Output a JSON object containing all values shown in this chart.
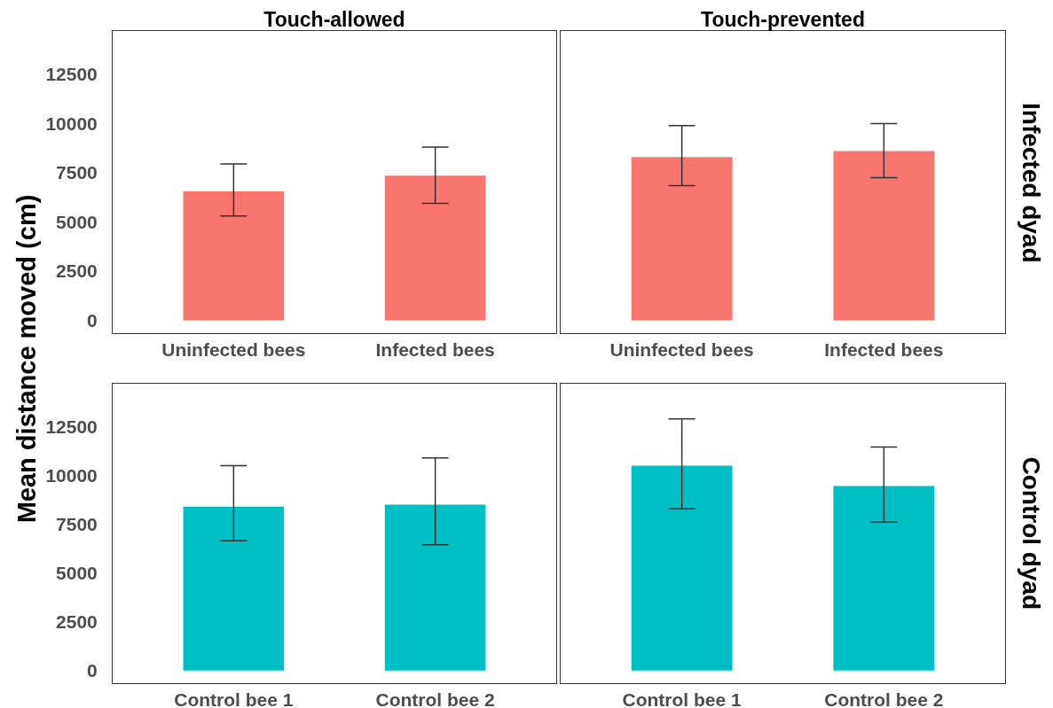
{
  "chart_data": [
    {
      "type": "bar",
      "title": "Touch-allowed",
      "ylabel": "Mean distance moved (cm)",
      "categories": [
        "Uninfected bees",
        "Infected bees"
      ],
      "values": [
        6550,
        7350
      ],
      "errors": [
        [
          5300,
          7950
        ],
        [
          5950,
          8800
        ]
      ],
      "color": "#f8766d",
      "ylim": [
        -650,
        14700
      ],
      "yticks": [
        0,
        2500,
        5000,
        7500,
        10000,
        12500
      ]
    },
    {
      "type": "bar",
      "title": "Touch-prevented",
      "annotations": [
        "Infected dyad"
      ],
      "categories": [
        "Uninfected bees",
        "Infected bees"
      ],
      "values": [
        8300,
        8600
      ],
      "errors": [
        [
          6850,
          9900
        ],
        [
          7250,
          10000
        ]
      ],
      "color": "#f8766d",
      "ylim": [
        -650,
        14700
      ],
      "yticks": [
        0,
        2500,
        5000,
        7500,
        10000,
        12500
      ],
      "tick_labels": "x"
    },
    {
      "type": "bar",
      "categories": [
        "Control bee 1",
        "Control bee 2"
      ],
      "values": [
        8400,
        8500
      ],
      "errors": [
        [
          6650,
          10500
        ],
        [
          6450,
          10900
        ]
      ],
      "color": "#00bfc4",
      "ylim": [
        -650,
        14700
      ],
      "yticks": [
        0,
        2500,
        5000,
        7500,
        10000,
        12500
      ]
    },
    {
      "type": "bar",
      "annotations": [
        "Control dyad"
      ],
      "categories": [
        "Control bee 1",
        "Control bee 2"
      ],
      "values": [
        10500,
        9450
      ],
      "errors": [
        [
          8300,
          12900
        ],
        [
          7600,
          11450
        ]
      ],
      "color": "#00bfc4",
      "ylim": [
        -650,
        14700
      ],
      "yticks": [
        0,
        2500,
        5000,
        7500,
        10000,
        12500
      ],
      "tick_labels": "x"
    }
  ]
}
